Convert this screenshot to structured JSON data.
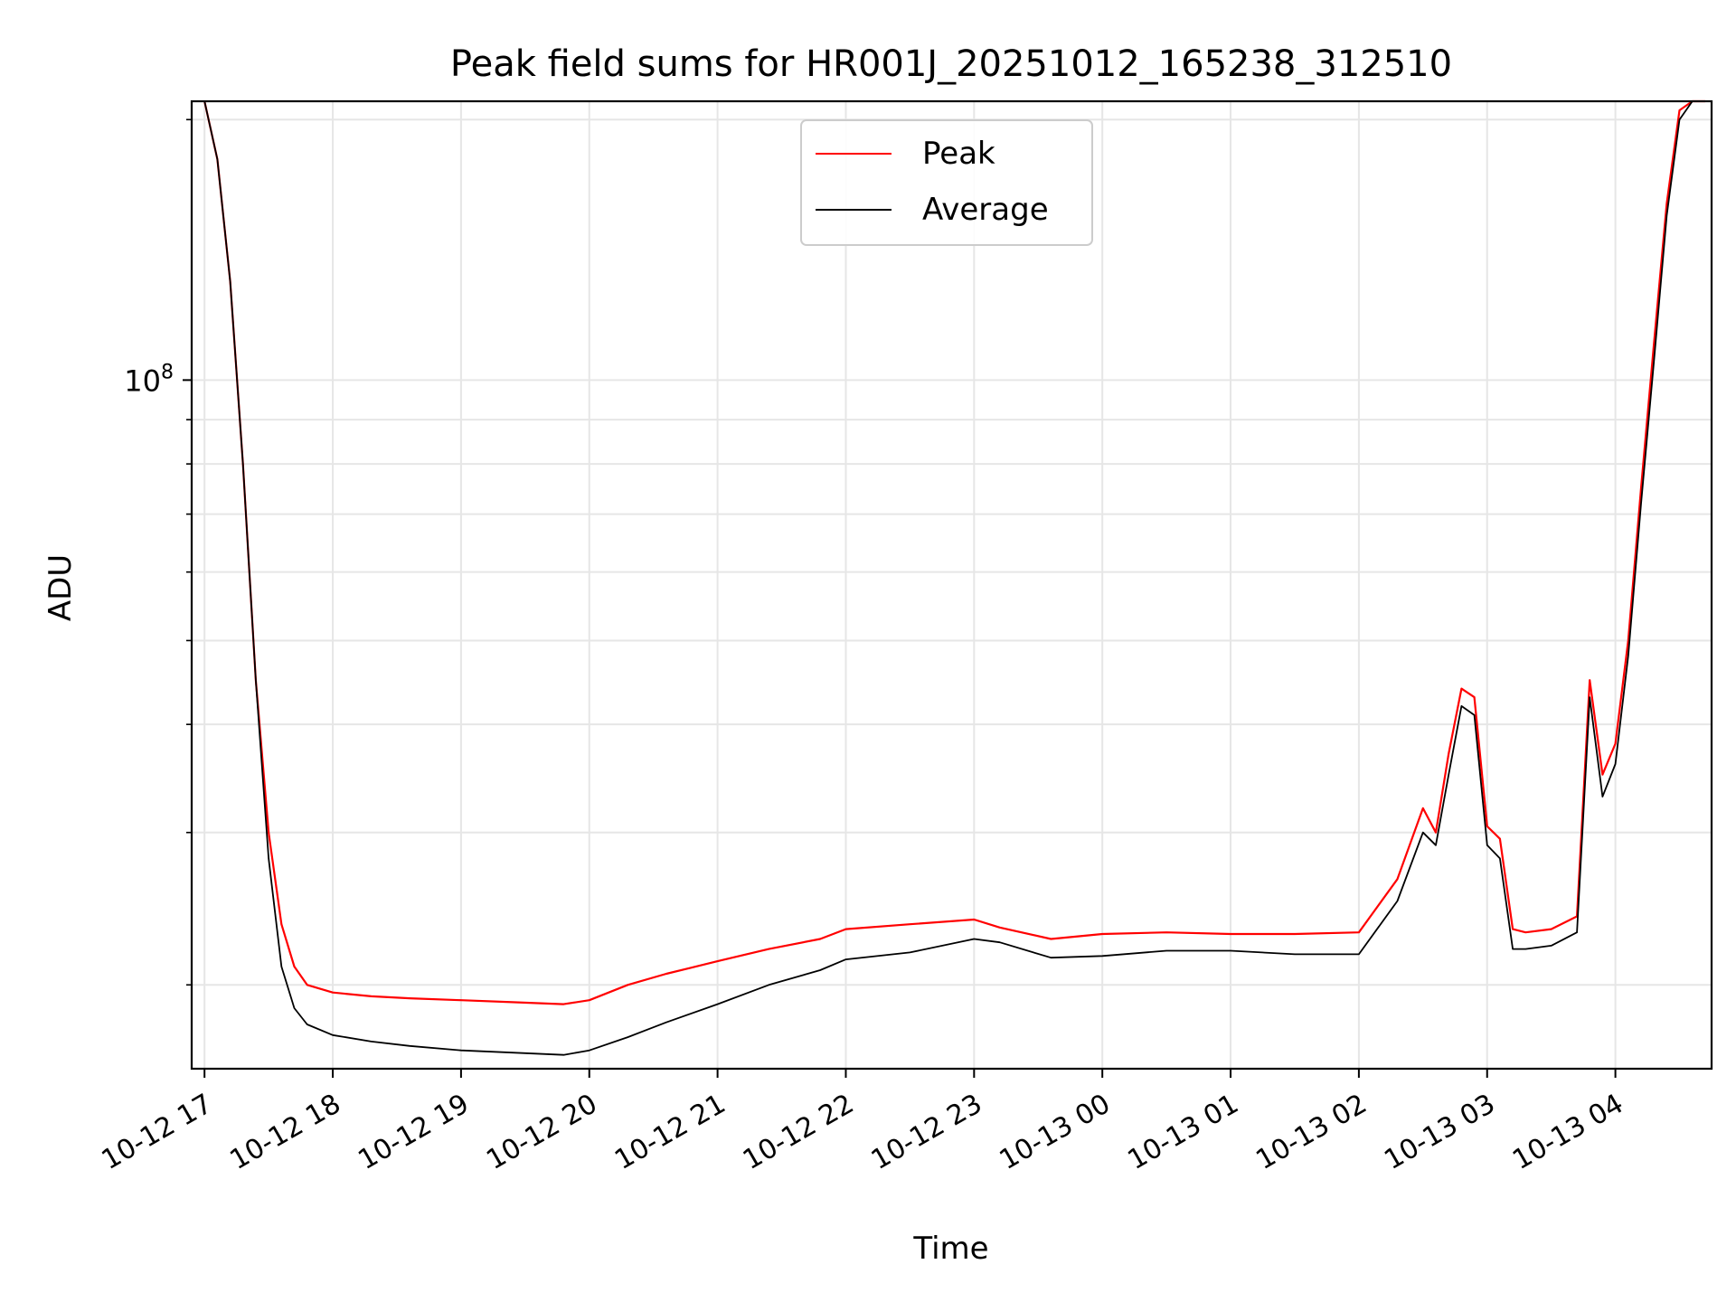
{
  "chart_data": {
    "type": "line",
    "title": "Peak field sums for HR001J_20251012_165238_312510",
    "xlabel": "Time",
    "ylabel": "ADU",
    "yscale": "log",
    "ylim": [
      16000000,
      210000000
    ],
    "xlim_hours": [
      -0.1,
      11.75
    ],
    "grid": true,
    "legend_position": "upper center",
    "x_tick_labels": [
      "10-12 17",
      "10-12 18",
      "10-12 19",
      "10-12 20",
      "10-12 21",
      "10-12 22",
      "10-12 23",
      "10-13 00",
      "10-13 01",
      "10-13 02",
      "10-13 03",
      "10-13 04"
    ],
    "x_tick_hours": [
      0,
      1,
      2,
      3,
      4,
      5,
      6,
      7,
      8,
      9,
      10,
      11
    ],
    "y_major_ticks": [
      {
        "value": 100000000,
        "base": "10",
        "exp": "8"
      }
    ],
    "y_minor_ticks": [
      20000000,
      30000000,
      40000000,
      50000000,
      60000000,
      70000000,
      80000000,
      90000000,
      200000000
    ],
    "series": [
      {
        "name": "Peak",
        "color": "#ff0000",
        "x_hours": [
          0,
          0.1,
          0.2,
          0.3,
          0.4,
          0.5,
          0.6,
          0.7,
          0.8,
          1.0,
          1.3,
          1.6,
          2.0,
          2.4,
          2.8,
          3.0,
          3.3,
          3.6,
          4.0,
          4.4,
          4.8,
          5.0,
          5.5,
          6.0,
          6.2,
          6.6,
          7.0,
          7.5,
          8.0,
          8.5,
          9.0,
          9.3,
          9.5,
          9.6,
          9.7,
          9.8,
          9.9,
          10.0,
          10.1,
          10.2,
          10.3,
          10.5,
          10.7,
          10.8,
          10.9,
          11.0,
          11.1,
          11.2,
          11.3,
          11.4,
          11.5,
          11.6,
          11.7
        ],
        "values": [
          210000000,
          180000000,
          130000000,
          80000000,
          45000000,
          30000000,
          23500000,
          21000000,
          20000000,
          19600000,
          19400000,
          19300000,
          19200000,
          19100000,
          19000000,
          19200000,
          20000000,
          20600000,
          21300000,
          22000000,
          22600000,
          23200000,
          23500000,
          23800000,
          23300000,
          22600000,
          22900000,
          23000000,
          22900000,
          22900000,
          23000000,
          26500000,
          32000000,
          30000000,
          37000000,
          44000000,
          43000000,
          30500000,
          29500000,
          23200000,
          23000000,
          23200000,
          24000000,
          45000000,
          35000000,
          38000000,
          50000000,
          75000000,
          110000000,
          160000000,
          205000000,
          210000000,
          210000000
        ]
      },
      {
        "name": "Average",
        "color": "#000000",
        "x_hours": [
          0,
          0.1,
          0.2,
          0.3,
          0.4,
          0.5,
          0.6,
          0.7,
          0.8,
          1.0,
          1.3,
          1.6,
          2.0,
          2.4,
          2.8,
          3.0,
          3.3,
          3.6,
          4.0,
          4.4,
          4.8,
          5.0,
          5.5,
          6.0,
          6.2,
          6.6,
          7.0,
          7.5,
          8.0,
          8.5,
          9.0,
          9.3,
          9.5,
          9.6,
          9.7,
          9.8,
          9.9,
          10.0,
          10.1,
          10.2,
          10.3,
          10.5,
          10.7,
          10.8,
          10.9,
          11.0,
          11.1,
          11.2,
          11.3,
          11.4,
          11.5,
          11.6,
          11.7
        ],
        "values": [
          210000000,
          180000000,
          130000000,
          80000000,
          45000000,
          28000000,
          21000000,
          18800000,
          18000000,
          17500000,
          17200000,
          17000000,
          16800000,
          16700000,
          16600000,
          16800000,
          17400000,
          18100000,
          19000000,
          20000000,
          20800000,
          21400000,
          21800000,
          22600000,
          22400000,
          21500000,
          21600000,
          21900000,
          21900000,
          21700000,
          21700000,
          25000000,
          30000000,
          29000000,
          35000000,
          42000000,
          41000000,
          29000000,
          28000000,
          22000000,
          22000000,
          22200000,
          23000000,
          43000000,
          33000000,
          36000000,
          48000000,
          72000000,
          105000000,
          155000000,
          200000000,
          210000000,
          210000000
        ]
      }
    ]
  }
}
